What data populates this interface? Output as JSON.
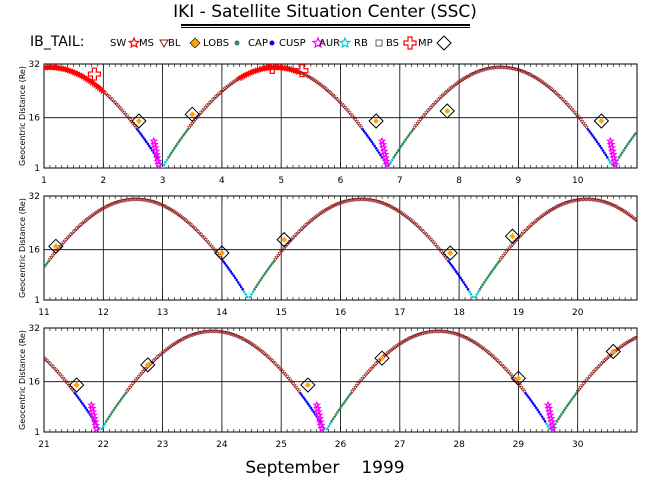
{
  "header": {
    "title": "IKI - Satellite Situation Center (SSC)",
    "object_name": "IB_TAIL:"
  },
  "footer": {
    "month": "September",
    "year": "1999"
  },
  "colors": {
    "SW": "#ff0000",
    "MS": "#8b1a1a",
    "BL": "#6a6a6a",
    "LOBS": "#ffa500",
    "CAP": "#2e8b57",
    "CUSP": "#0000ff",
    "AUR": "#ff00ff",
    "RB": "#00ced1",
    "BS": "#606060",
    "MP": "#ff0000"
  },
  "chart_data": {
    "type": "scatter",
    "legend": [
      {
        "label": "SW",
        "symbol": "star",
        "color": "#ff0000"
      },
      {
        "label": "MS",
        "symbol": "triangle-down",
        "color": "#8b1a1a"
      },
      {
        "label": "BL",
        "symbol": "diamond",
        "color": "#ffa500"
      },
      {
        "label": "LOBS",
        "symbol": "dot",
        "color": "#2e8b57"
      },
      {
        "label": "CAP",
        "symbol": "dot",
        "color": "#0000ff"
      },
      {
        "label": "CUSP",
        "symbol": "star",
        "color": "#ff00ff"
      },
      {
        "label": "AUR",
        "symbol": "star",
        "color": "#00ced1"
      },
      {
        "label": "RB",
        "symbol": "square",
        "color": "#606060"
      },
      {
        "label": "BS",
        "symbol": "cross",
        "color": "#ff0000"
      },
      {
        "label": "MP",
        "symbol": "diamond-open",
        "color": "#000000"
      }
    ],
    "ylabel": "Geocentric Distance (Re)",
    "yticks": [
      "1",
      "16",
      "32"
    ],
    "ylim": [
      1,
      32
    ],
    "grid": true,
    "panels": [
      {
        "xlim": [
          1,
          11
        ],
        "xticks": [
          "1",
          "2",
          "3",
          "4",
          "5",
          "6",
          "7",
          "8",
          "9",
          "10"
        ],
        "perigees": [
          3.0,
          6.85,
          10.65
        ],
        "apogees": [
          0.5,
          4.85,
          8.8
        ],
        "sw_extent": [
          1.0,
          2.0
        ],
        "sw_extent2": [
          4.3,
          5.3
        ],
        "bs_crossings": [
          [
            1.85,
            29.0
          ],
          [
            4.85,
            31.0
          ],
          [
            5.35,
            30.0
          ]
        ],
        "mp_crossings": [
          [
            2.6,
            15.0
          ],
          [
            3.5,
            17.0
          ],
          [
            6.6,
            15.0
          ],
          [
            7.8,
            18.0
          ],
          [
            10.4,
            15.0
          ]
        ],
        "cusp_passes": [
          2.85,
          6.7,
          10.55
        ]
      },
      {
        "xlim": [
          11,
          21
        ],
        "xticks": [
          "11",
          "12",
          "13",
          "14",
          "15",
          "16",
          "17",
          "18",
          "19",
          "20"
        ],
        "perigees": [
          14.45,
          18.25
        ],
        "apogees": [
          12.6,
          16.35,
          20.15
        ],
        "mp_crossings": [
          [
            11.2,
            17.0
          ],
          [
            14.0,
            15.0
          ],
          [
            15.05,
            19.0
          ],
          [
            17.85,
            15.0
          ],
          [
            18.9,
            20.0
          ]
        ],
        "cusp_passes": []
      },
      {
        "xlim": [
          21,
          31
        ],
        "xticks": [
          "21",
          "22",
          "23",
          "24",
          "25",
          "26",
          "27",
          "28",
          "29",
          "30"
        ],
        "perigees": [
          21.95,
          25.7,
          29.6
        ],
        "apogees": [
          20.1,
          23.85,
          27.65,
          31.45
        ],
        "mp_crossings": [
          [
            21.55,
            15.0
          ],
          [
            22.75,
            21.0
          ],
          [
            25.45,
            15.0
          ],
          [
            26.7,
            23.0
          ],
          [
            29.0,
            17.0
          ],
          [
            30.6,
            25.0
          ]
        ],
        "cusp_passes": [
          21.8,
          25.6,
          29.5
        ]
      }
    ]
  }
}
